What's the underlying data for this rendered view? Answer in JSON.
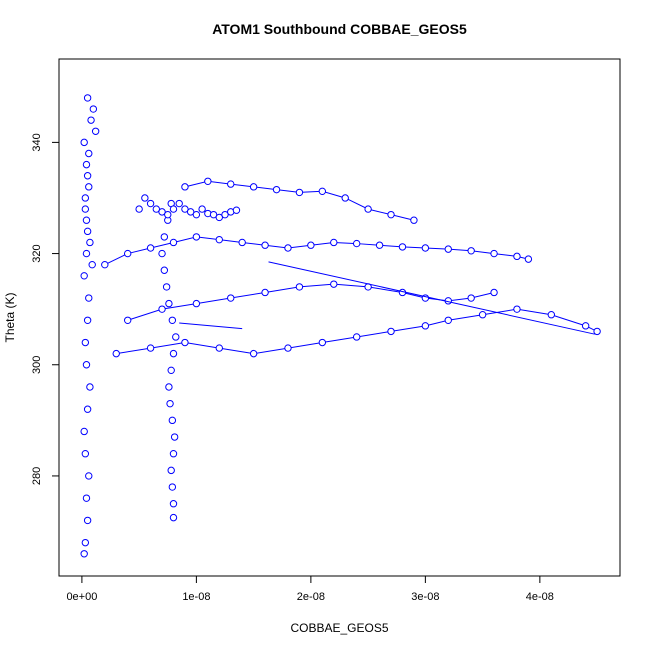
{
  "chart_data": {
    "type": "scatter",
    "title": "ATOM1 Southbound COBBAE_GEOS5",
    "xlabel": "COBBAE_GEOS5",
    "ylabel": "Theta (K)",
    "xlim": [
      -2e-09,
      4.7e-08
    ],
    "ylim": [
      262,
      355
    ],
    "x_ticks": [
      0,
      1e-08,
      2e-08,
      3e-08,
      4e-08
    ],
    "x_tick_labels": [
      "0e+00",
      "1e-08",
      "2e-08",
      "3e-08",
      "4e-08"
    ],
    "y_ticks": [
      280,
      300,
      320,
      340
    ],
    "y_tick_labels": [
      "280",
      "300",
      "320",
      "340"
    ],
    "grid": false,
    "series_color": "#0000ff",
    "marker": "open-circle",
    "series": [
      {
        "mode": "points",
        "x": [
          2e-10,
          3e-10,
          5e-10,
          4e-10,
          6e-10,
          3e-10,
          2e-10,
          5e-10,
          7e-10,
          4e-10,
          3e-10,
          5e-10,
          6e-10,
          2e-10,
          4e-10,
          5e-10,
          3e-10,
          6e-10,
          4e-10,
          2e-10,
          8e-10,
          1e-09,
          1.2e-09,
          6e-10,
          5e-10,
          3e-10,
          4e-10,
          7e-10,
          9e-10,
          5e-10
        ],
        "y": [
          266,
          268,
          272,
          276,
          280,
          284,
          288,
          292,
          296,
          300,
          304,
          308,
          312,
          316,
          320,
          324,
          328,
          332,
          336,
          340,
          344,
          346,
          342,
          338,
          334,
          330,
          326,
          322,
          318,
          348
        ]
      },
      {
        "mode": "points",
        "x": [
          8e-09,
          8e-09,
          7.9e-09,
          7.8e-09,
          8e-09,
          8.1e-09,
          7.9e-09,
          7.7e-09,
          7.6e-09,
          7.8e-09,
          8e-09,
          8.2e-09,
          7.9e-09,
          7.6e-09,
          7.4e-09,
          7.2e-09,
          7e-09,
          7.2e-09,
          7.5e-09,
          7.8e-09
        ],
        "y": [
          272.5,
          275,
          278,
          281,
          284,
          287,
          290,
          293,
          296,
          299,
          302,
          305,
          308,
          311,
          314,
          317,
          320,
          323,
          326,
          329
        ]
      },
      {
        "mode": "points",
        "x": [
          5e-09,
          5.5e-09,
          6e-09,
          6.5e-09,
          7e-09,
          7.5e-09,
          8e-09,
          8.5e-09,
          9e-09,
          9.5e-09,
          1e-08,
          1.05e-08,
          1.1e-08,
          1.15e-08,
          1.2e-08,
          1.25e-08,
          1.3e-08,
          1.35e-08
        ],
        "y": [
          328,
          330,
          329,
          328,
          327.5,
          327,
          328,
          329,
          328,
          327.5,
          327,
          328,
          327.2,
          327,
          326.5,
          327,
          327.5,
          327.8
        ]
      },
      {
        "mode": "line-points",
        "x": [
          2e-09,
          4e-09,
          6e-09,
          8e-09,
          1e-08,
          1.2e-08,
          1.4e-08,
          1.6e-08,
          1.8e-08,
          2e-08,
          2.2e-08,
          2.4e-08,
          2.6e-08,
          2.8e-08,
          3e-08,
          3.2e-08,
          3.4e-08,
          3.6e-08,
          3.8e-08,
          3.9e-08
        ],
        "y": [
          318,
          320,
          321,
          322,
          323,
          322.5,
          322,
          321.5,
          321,
          321.5,
          322,
          321.8,
          321.5,
          321.2,
          321,
          320.8,
          320.5,
          320,
          319.5,
          319
        ]
      },
      {
        "mode": "line-points",
        "x": [
          3e-09,
          6e-09,
          9e-09,
          1.2e-08,
          1.5e-08,
          1.8e-08,
          2.1e-08,
          2.4e-08,
          2.7e-08,
          3e-08,
          3.2e-08,
          3.5e-08,
          3.8e-08,
          4.1e-08,
          4.4e-08,
          4.5e-08
        ],
        "y": [
          302,
          303,
          304,
          303,
          302,
          303,
          304,
          305,
          306,
          307,
          308,
          309,
          310,
          309,
          307,
          306
        ]
      },
      {
        "mode": "line-points",
        "x": [
          4e-09,
          7e-09,
          1e-08,
          1.3e-08,
          1.6e-08,
          1.9e-08,
          2.2e-08,
          2.5e-08,
          2.8e-08,
          3e-08,
          3.2e-08,
          3.4e-08,
          3.6e-08
        ],
        "y": [
          308,
          310,
          311,
          312,
          313,
          314,
          314.5,
          314,
          313,
          312,
          311.5,
          312,
          313
        ]
      },
      {
        "mode": "line-points",
        "x": [
          9e-09,
          1.1e-08,
          1.3e-08,
          1.5e-08,
          1.7e-08,
          1.9e-08,
          2.1e-08,
          2.3e-08,
          2.5e-08,
          2.7e-08,
          2.9e-08
        ],
        "y": [
          332,
          333,
          332.5,
          332,
          331.5,
          331,
          331.2,
          330,
          328,
          327,
          326
        ]
      },
      {
        "mode": "line",
        "x": [
          1.63e-08,
          4.48e-08
        ],
        "y": [
          318.5,
          305.5
        ]
      },
      {
        "mode": "line",
        "x": [
          8.5e-09,
          1.4e-08
        ],
        "y": [
          307.5,
          306.5
        ]
      }
    ]
  }
}
